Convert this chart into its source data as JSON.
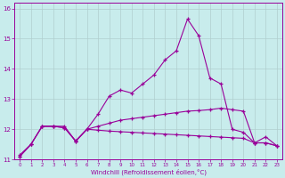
{
  "xlabel": "Windchill (Refroidissement éolien,°C)",
  "background_color": "#c8ecec",
  "grid_color": "#b0cece",
  "line_color": "#990099",
  "x_hours": [
    0,
    1,
    2,
    3,
    4,
    5,
    6,
    7,
    8,
    9,
    10,
    11,
    12,
    13,
    14,
    15,
    16,
    17,
    18,
    19,
    20,
    21,
    22,
    23
  ],
  "series1": [
    11.1,
    11.5,
    12.1,
    12.1,
    12.1,
    11.6,
    12.0,
    12.5,
    13.1,
    13.3,
    13.2,
    13.5,
    13.8,
    14.3,
    14.6,
    15.65,
    15.1,
    13.7,
    13.5,
    12.0,
    11.9,
    11.55,
    11.75,
    11.45
  ],
  "series2": [
    11.15,
    11.5,
    12.1,
    12.1,
    12.05,
    11.6,
    12.0,
    12.1,
    12.2,
    12.3,
    12.35,
    12.4,
    12.45,
    12.5,
    12.55,
    12.6,
    12.62,
    12.65,
    12.7,
    12.65,
    12.6,
    11.55,
    11.55,
    11.45
  ],
  "series3": [
    11.1,
    11.5,
    12.1,
    12.1,
    12.05,
    11.62,
    12.0,
    11.97,
    11.94,
    11.92,
    11.9,
    11.88,
    11.86,
    11.84,
    11.82,
    11.8,
    11.78,
    11.76,
    11.74,
    11.72,
    11.7,
    11.55,
    11.55,
    11.45
  ],
  "ylim": [
    11,
    16.2
  ],
  "yticks": [
    11,
    12,
    13,
    14,
    15,
    16
  ],
  "xticks": [
    0,
    1,
    2,
    3,
    4,
    5,
    6,
    7,
    8,
    9,
    10,
    11,
    12,
    13,
    14,
    15,
    16,
    17,
    18,
    19,
    20,
    21,
    22,
    23
  ]
}
